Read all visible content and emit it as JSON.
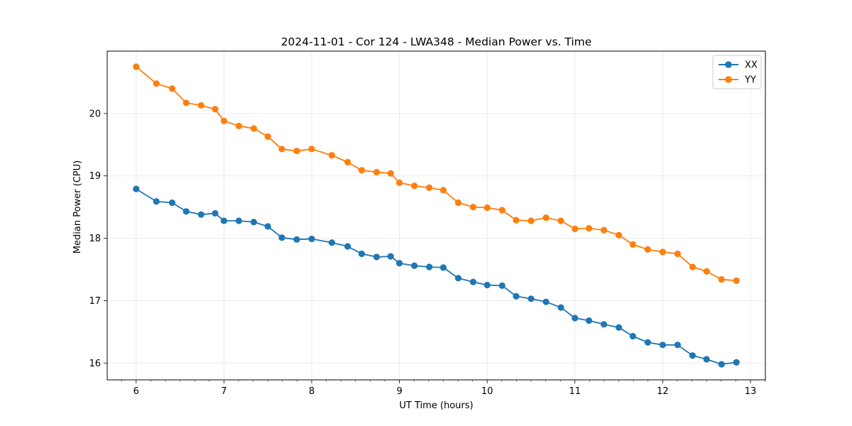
{
  "chart_data": {
    "type": "line",
    "title": "2024-11-01 - Cor 124 - LWA348 - Median Power vs. Time",
    "xlabel": "UT Time (hours)",
    "ylabel": "Median Power (CPU)",
    "xlim": [
      5.67,
      13.17
    ],
    "ylim": [
      15.73,
      21.0
    ],
    "xticks": [
      6,
      7,
      8,
      9,
      10,
      11,
      12,
      13
    ],
    "yticks": [
      16,
      17,
      18,
      19,
      20
    ],
    "grid": true,
    "legend_position": "top-right",
    "series": [
      {
        "name": "XX",
        "color": "#1f77b4",
        "x": [
          6.0,
          6.23,
          6.41,
          6.57,
          6.74,
          6.9,
          7.0,
          7.17,
          7.34,
          7.5,
          7.66,
          7.83,
          8.0,
          8.23,
          8.41,
          8.57,
          8.74,
          8.9,
          9.0,
          9.17,
          9.34,
          9.5,
          9.67,
          9.84,
          10.0,
          10.17,
          10.33,
          10.5,
          10.67,
          10.84,
          11.0,
          11.16,
          11.33,
          11.5,
          11.66,
          11.83,
          12.0,
          12.17,
          12.34,
          12.5,
          12.67,
          12.84
        ],
        "values": [
          18.79,
          18.59,
          18.57,
          18.43,
          18.38,
          18.4,
          18.28,
          18.28,
          18.26,
          18.19,
          18.01,
          17.98,
          17.99,
          17.93,
          17.87,
          17.75,
          17.7,
          17.71,
          17.6,
          17.56,
          17.54,
          17.53,
          17.36,
          17.3,
          17.25,
          17.24,
          17.07,
          17.03,
          16.98,
          16.89,
          16.72,
          16.68,
          16.62,
          16.57,
          16.43,
          16.33,
          16.29,
          16.29,
          16.12,
          16.06,
          15.98,
          16.01
        ]
      },
      {
        "name": "YY",
        "color": "#ff7f0e",
        "x": [
          6.0,
          6.23,
          6.41,
          6.57,
          6.74,
          6.9,
          7.0,
          7.17,
          7.34,
          7.5,
          7.66,
          7.83,
          8.0,
          8.23,
          8.41,
          8.57,
          8.74,
          8.9,
          9.0,
          9.17,
          9.34,
          9.5,
          9.67,
          9.84,
          10.0,
          10.17,
          10.33,
          10.5,
          10.67,
          10.84,
          11.0,
          11.16,
          11.33,
          11.5,
          11.66,
          11.83,
          12.0,
          12.17,
          12.34,
          12.5,
          12.67,
          12.84
        ],
        "values": [
          20.75,
          20.48,
          20.4,
          20.17,
          20.13,
          20.07,
          19.88,
          19.8,
          19.76,
          19.63,
          19.43,
          19.4,
          19.43,
          19.33,
          19.22,
          19.09,
          19.06,
          19.04,
          18.89,
          18.84,
          18.81,
          18.77,
          18.57,
          18.5,
          18.49,
          18.45,
          18.29,
          18.28,
          18.33,
          18.28,
          18.15,
          18.16,
          18.13,
          18.05,
          17.9,
          17.82,
          17.78,
          17.75,
          17.54,
          17.47,
          17.34,
          17.32
        ]
      }
    ]
  }
}
